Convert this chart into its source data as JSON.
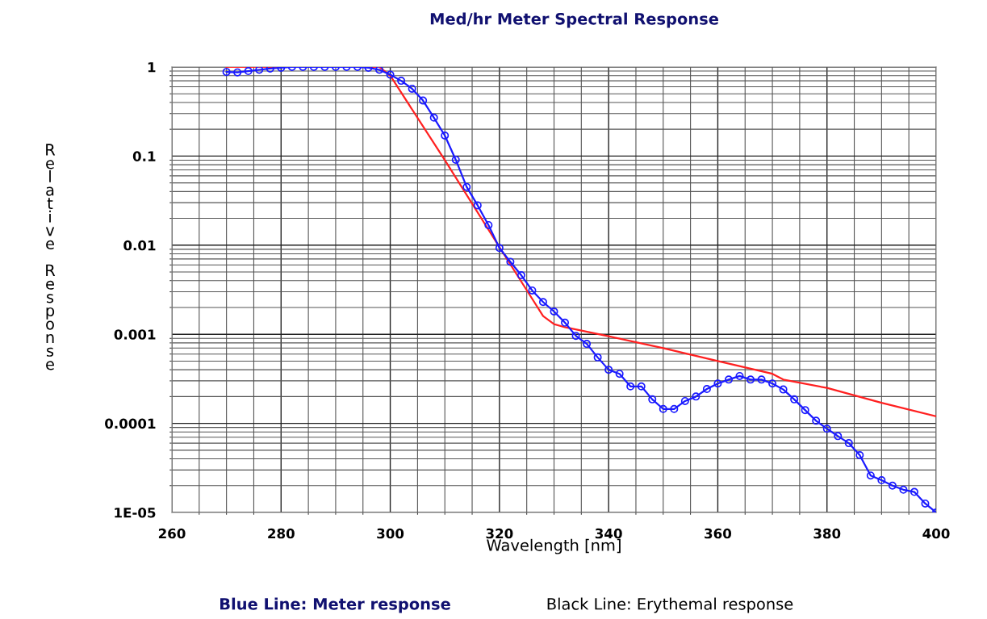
{
  "chart_data": {
    "type": "line",
    "title": "Med/hr Meter Spectral Response",
    "xlabel": "Wavelength [nm]",
    "ylabel": "Relative Response",
    "log": "y",
    "grid": true,
    "xlim": [
      260,
      400
    ],
    "xticks": [
      260,
      280,
      300,
      320,
      340,
      360,
      380,
      400
    ],
    "ylim": [
      1e-05,
      1
    ],
    "yticks": [
      {
        "value": 1,
        "label": "1"
      },
      {
        "value": 0.1,
        "label": "0.1"
      },
      {
        "value": 0.01,
        "label": "0.01"
      },
      {
        "value": 0.001,
        "label": "0.001"
      },
      {
        "value": 0.0001,
        "label": "0.0001"
      },
      {
        "value": 1e-05,
        "label": "1E-05"
      }
    ],
    "series": [
      {
        "color": "#ff2020",
        "marker": "none",
        "x": [
          270,
          298,
          300,
          310,
          320,
          326,
          328,
          330,
          332,
          340,
          350,
          360,
          370,
          372,
          380,
          390,
          400
        ],
        "values": [
          1,
          1,
          0.8,
          0.09,
          0.0095,
          0.0025,
          0.0016,
          0.0013,
          0.0012,
          0.00095,
          0.0007,
          0.0005,
          0.00036,
          0.00031,
          0.00025,
          0.00017,
          0.00012
        ]
      },
      {
        "color": "#1a1aff",
        "marker": "circle",
        "x": [
          270,
          272,
          274,
          276,
          278,
          280,
          282,
          284,
          286,
          288,
          290,
          292,
          294,
          296,
          298,
          300,
          302,
          304,
          306,
          308,
          310,
          312,
          314,
          316,
          318,
          320,
          322,
          324,
          326,
          328,
          330,
          332,
          334,
          336,
          338,
          340,
          342,
          344,
          346,
          348,
          350,
          352,
          354,
          356,
          358,
          360,
          362,
          364,
          366,
          368,
          370,
          372,
          374,
          376,
          378,
          380,
          382,
          384,
          386,
          388,
          390,
          392,
          394,
          396,
          398,
          400
        ],
        "values": [
          0.88,
          0.87,
          0.9,
          0.93,
          0.96,
          0.98,
          1.0,
          1.0,
          1.0,
          1.0,
          1.0,
          1.0,
          1.0,
          0.98,
          0.93,
          0.82,
          0.7,
          0.57,
          0.42,
          0.27,
          0.17,
          0.091,
          0.045,
          0.028,
          0.0168,
          0.0093,
          0.0065,
          0.0046,
          0.0031,
          0.0023,
          0.0018,
          0.00135,
          0.00096,
          0.00078,
          0.00055,
          0.0004,
          0.00036,
          0.00026,
          0.00026,
          0.000186,
          0.000145,
          0.000145,
          0.000178,
          0.0002,
          0.000243,
          0.00028,
          0.00031,
          0.00034,
          0.00031,
          0.00031,
          0.00028,
          0.00024,
          0.000186,
          0.000141,
          0.000107,
          8.7e-05,
          7.2e-05,
          6e-05,
          4.4e-05,
          2.6e-05,
          2.3e-05,
          2e-05,
          1.8e-05,
          1.7e-05,
          1.26e-05,
          1e-05
        ]
      }
    ],
    "annotations": [
      "Blue Line: Meter response",
      "Black Line: Erythemal response"
    ]
  }
}
